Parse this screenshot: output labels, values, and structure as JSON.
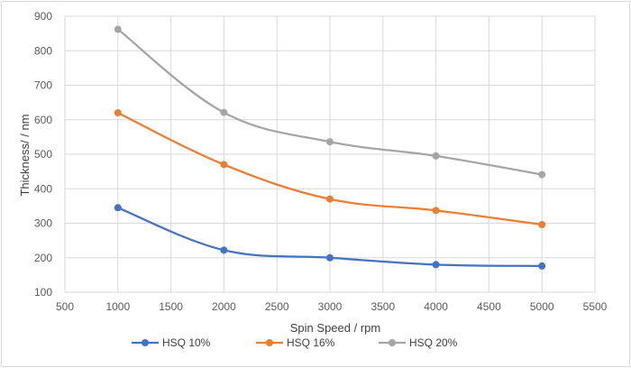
{
  "chart_data": {
    "type": "line",
    "title": "",
    "xlabel": "Spin Speed / rpm",
    "ylabel": "Thickness/ / nm",
    "xlim": [
      500,
      5500
    ],
    "ylim": [
      100,
      900
    ],
    "xticks": [
      500,
      1000,
      1500,
      2000,
      2500,
      3000,
      3500,
      4000,
      4500,
      5000,
      5500
    ],
    "yticks": [
      100,
      200,
      300,
      400,
      500,
      600,
      700,
      800,
      900
    ],
    "grid": true,
    "legend_position": "bottom",
    "x": [
      1000,
      2000,
      3000,
      4000,
      5000
    ],
    "series": [
      {
        "name": "HSQ 10%",
        "color": "#4472c4",
        "values": [
          345,
          222,
          200,
          180,
          176
        ]
      },
      {
        "name": "HSQ 16%",
        "color": "#ed7d31",
        "values": [
          620,
          470,
          370,
          337,
          296
        ]
      },
      {
        "name": "HSQ 20%",
        "color": "#a5a5a5",
        "values": [
          862,
          621,
          536,
          495,
          441
        ]
      }
    ]
  }
}
